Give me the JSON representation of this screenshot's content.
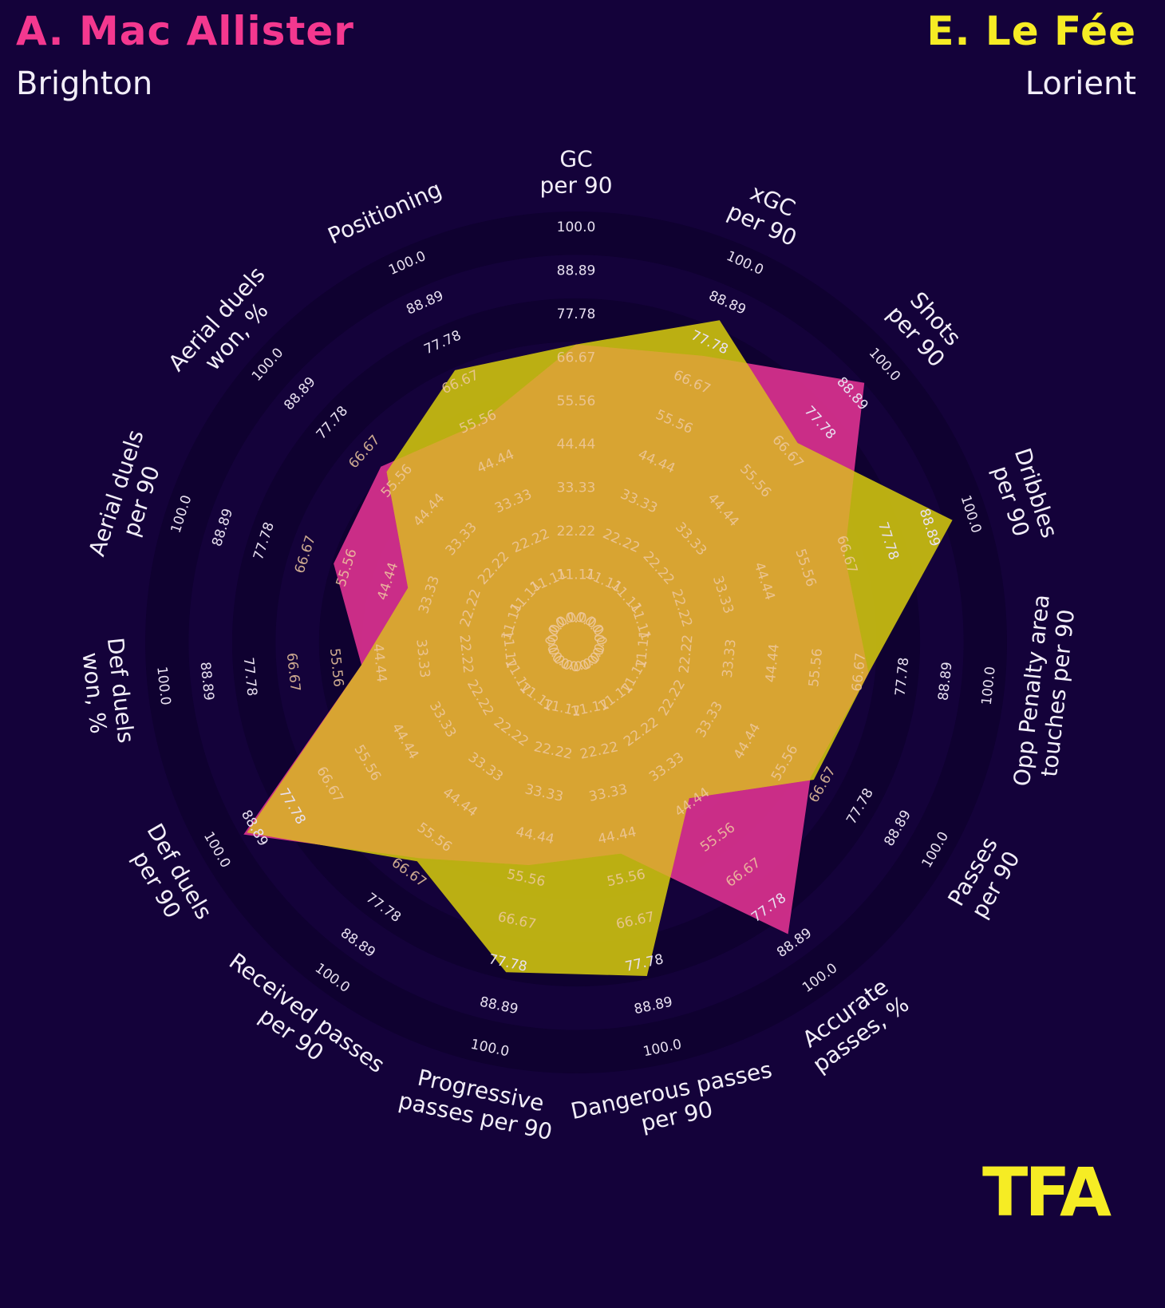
{
  "header": {
    "left": {
      "player": "A. Mac Allister",
      "team": "Brighton",
      "color": "#f4388f"
    },
    "right": {
      "player": "E. Le Fée",
      "team": "Lorient",
      "color": "#f6ec24"
    }
  },
  "colors": {
    "background": "#14023a",
    "ring_dark": "#0f0130",
    "ring_light": "#14023a",
    "series_left_fill": "#d8308e",
    "series_right_fill": "#c8bc10",
    "overlap_fill": "#d8a432",
    "label_text": "#f2eef8",
    "tick_text": "#e8e0f0",
    "tick_text_inside": "#eec9a0"
  },
  "logo": {
    "text": "TFA",
    "color": "#f6ec24",
    "icon": "tfa-logo"
  },
  "chart_data": {
    "type": "radar",
    "axes": [
      "GC\nper 90",
      "xGC\nper 90",
      "Shots\nper 90",
      "Dribbles\nper 90",
      "Opp Penalty area\ntouches per 90",
      "Passes\nper 90",
      "Accurate\npasses, %",
      "Dangerous passes\nper 90",
      "Progressive\npasses per 90",
      "Received passes\nper 90",
      "Def duels\nper 90",
      "Def duels\nwon, %",
      "Aerial duels\nper 90",
      "Aerial duels\nwon, %",
      "Positioning"
    ],
    "ticks": [
      "0.0",
      "11.11",
      "22.22",
      "33.33",
      "44.44",
      "55.56",
      "66.67",
      "77.78",
      "88.89",
      "100.0"
    ],
    "range": [
      0,
      100
    ],
    "series": [
      {
        "name": "A. Mac Allister",
        "values": [
          66,
          70,
          89,
          62,
          65,
          59,
          82,
          45,
          48,
          58,
          88,
          45,
          55,
          57,
          51
        ]
      },
      {
        "name": "E. Le Fée",
        "values": [
          66,
          80,
          66,
          91,
          65,
          60,
          39,
          77,
          76,
          59,
          87,
          45,
          35,
          55,
          66
        ]
      }
    ]
  }
}
